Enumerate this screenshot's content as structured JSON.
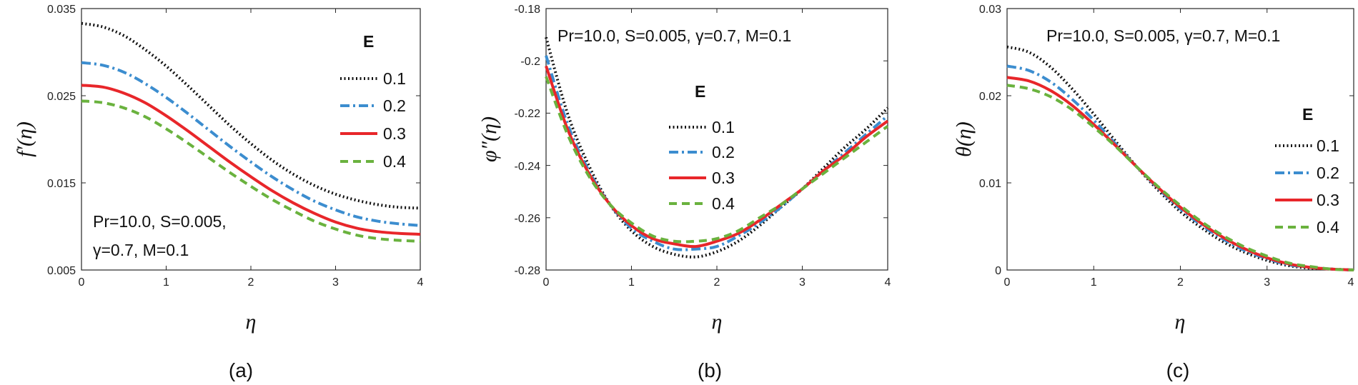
{
  "chart_data": [
    {
      "type": "line",
      "panel_label": "(a)",
      "xlabel": "η",
      "ylabel": "f′(η)",
      "xlim": [
        0,
        4
      ],
      "ylim": [
        0.005,
        0.035
      ],
      "xticks": [
        "0",
        "1",
        "2",
        "3",
        "4"
      ],
      "yticks": [
        "0.005",
        "0.015",
        "0.025",
        "0.035"
      ],
      "annotation": [
        "Pr=10.0, S=0.005,",
        "γ=0.7, M=0.1"
      ],
      "legend": {
        "title": "E",
        "placement": "top-right"
      },
      "series": [
        {
          "name": "0.1",
          "style": "dotted",
          "color": "#111111",
          "x": [
            0,
            0.25,
            0.5,
            0.75,
            1,
            1.25,
            1.5,
            1.75,
            2,
            2.25,
            2.5,
            2.75,
            3,
            3.25,
            3.5,
            3.75,
            4
          ],
          "y": [
            0.0333,
            0.0329,
            0.0319,
            0.0303,
            0.0284,
            0.0262,
            0.0239,
            0.0216,
            0.0195,
            0.0176,
            0.016,
            0.0147,
            0.0137,
            0.013,
            0.0125,
            0.0122,
            0.0121
          ]
        },
        {
          "name": "0.2",
          "style": "dashdot",
          "color": "#3c8dcf",
          "x": [
            0,
            0.25,
            0.5,
            0.75,
            1,
            1.25,
            1.5,
            1.75,
            2,
            2.25,
            2.5,
            2.75,
            3,
            3.25,
            3.5,
            3.75,
            4
          ],
          "y": [
            0.0288,
            0.0285,
            0.0277,
            0.0264,
            0.0248,
            0.023,
            0.0211,
            0.0192,
            0.0174,
            0.0157,
            0.0142,
            0.0129,
            0.0119,
            0.0111,
            0.0106,
            0.0103,
            0.0101
          ]
        },
        {
          "name": "0.3",
          "style": "solid",
          "color": "#e8262a",
          "x": [
            0,
            0.25,
            0.5,
            0.75,
            1,
            1.25,
            1.5,
            1.75,
            2,
            2.25,
            2.5,
            2.75,
            3,
            3.25,
            3.5,
            3.75,
            4
          ],
          "y": [
            0.0262,
            0.026,
            0.0253,
            0.0242,
            0.0227,
            0.021,
            0.0192,
            0.0174,
            0.0157,
            0.0141,
            0.0127,
            0.0115,
            0.0105,
            0.0098,
            0.0094,
            0.0092,
            0.0091
          ]
        },
        {
          "name": "0.4",
          "style": "dashed",
          "color": "#6ab23e",
          "x": [
            0,
            0.25,
            0.5,
            0.75,
            1,
            1.25,
            1.5,
            1.75,
            2,
            2.25,
            2.5,
            2.75,
            3,
            3.25,
            3.5,
            3.75,
            4
          ],
          "y": [
            0.0244,
            0.0242,
            0.0236,
            0.0226,
            0.0212,
            0.0196,
            0.0179,
            0.0162,
            0.0146,
            0.0131,
            0.0118,
            0.0106,
            0.0097,
            0.009,
            0.0086,
            0.0084,
            0.0083
          ]
        }
      ]
    },
    {
      "type": "line",
      "panel_label": "(b)",
      "xlabel": "η",
      "ylabel": "φ″(η)",
      "xlim": [
        0,
        4
      ],
      "ylim": [
        -0.28,
        -0.18
      ],
      "xticks": [
        "0",
        "1",
        "2",
        "3",
        "4"
      ],
      "yticks": [
        "-0.28",
        "-0.26",
        "-0.24",
        "-0.22",
        "-0.2",
        "-0.18"
      ],
      "annotation": [
        "Pr=10.0, S=0.005, γ=0.7, M=0.1"
      ],
      "legend": {
        "title": "E",
        "placement": "center"
      },
      "series": [
        {
          "name": "0.1",
          "style": "dotted",
          "color": "#111111",
          "x": [
            0,
            0.25,
            0.5,
            0.75,
            1,
            1.25,
            1.5,
            1.75,
            2,
            2.25,
            2.5,
            2.75,
            3,
            3.25,
            3.5,
            3.75,
            4
          ],
          "y": [
            -0.191,
            -0.22,
            -0.24,
            -0.255,
            -0.265,
            -0.271,
            -0.274,
            -0.275,
            -0.273,
            -0.269,
            -0.263,
            -0.256,
            -0.249,
            -0.241,
            -0.233,
            -0.226,
            -0.218
          ]
        },
        {
          "name": "0.2",
          "style": "dashdot",
          "color": "#3c8dcf",
          "x": [
            0,
            0.25,
            0.5,
            0.75,
            1,
            1.25,
            1.5,
            1.75,
            2,
            2.25,
            2.5,
            2.75,
            3,
            3.25,
            3.5,
            3.75,
            4
          ],
          "y": [
            -0.198,
            -0.224,
            -0.242,
            -0.255,
            -0.264,
            -0.269,
            -0.272,
            -0.272,
            -0.271,
            -0.267,
            -0.262,
            -0.256,
            -0.249,
            -0.242,
            -0.235,
            -0.228,
            -0.221
          ]
        },
        {
          "name": "0.3",
          "style": "solid",
          "color": "#e8262a",
          "x": [
            0,
            0.25,
            0.5,
            0.75,
            1,
            1.25,
            1.5,
            1.75,
            2,
            2.25,
            2.5,
            2.75,
            3,
            3.25,
            3.5,
            3.75,
            4
          ],
          "y": [
            -0.202,
            -0.226,
            -0.243,
            -0.255,
            -0.263,
            -0.268,
            -0.27,
            -0.271,
            -0.269,
            -0.266,
            -0.261,
            -0.255,
            -0.249,
            -0.242,
            -0.236,
            -0.229,
            -0.223
          ]
        },
        {
          "name": "0.4",
          "style": "dashed",
          "color": "#6ab23e",
          "x": [
            0,
            0.25,
            0.5,
            0.75,
            1,
            1.25,
            1.5,
            1.75,
            2,
            2.25,
            2.5,
            2.75,
            3,
            3.25,
            3.5,
            3.75,
            4
          ],
          "y": [
            -0.206,
            -0.228,
            -0.244,
            -0.255,
            -0.262,
            -0.267,
            -0.269,
            -0.269,
            -0.268,
            -0.265,
            -0.26,
            -0.255,
            -0.249,
            -0.243,
            -0.237,
            -0.231,
            -0.225
          ]
        }
      ]
    },
    {
      "type": "line",
      "panel_label": "(c)",
      "xlabel": "η",
      "ylabel": "θ(η)",
      "xlim": [
        0,
        4
      ],
      "ylim": [
        0,
        0.03
      ],
      "xticks": [
        "0",
        "1",
        "2",
        "3",
        "4"
      ],
      "yticks": [
        "0",
        "0.01",
        "0.02",
        "0.03"
      ],
      "annotation": [
        "Pr=10.0, S=0.005, γ=0.7, M=0.1"
      ],
      "legend": {
        "title": "E",
        "placement": "right"
      },
      "series": [
        {
          "name": "0.1",
          "style": "dotted",
          "color": "#111111",
          "x": [
            0,
            0.25,
            0.5,
            0.75,
            1,
            1.25,
            1.5,
            1.75,
            2,
            2.25,
            2.5,
            2.75,
            3,
            3.25,
            3.5,
            3.75,
            4
          ],
          "y": [
            0.0256,
            0.025,
            0.0233,
            0.0208,
            0.0179,
            0.0148,
            0.0118,
            0.0091,
            0.0067,
            0.0048,
            0.0032,
            0.002,
            0.0011,
            0.0005,
            0.0002,
            0.0001,
            0.0
          ]
        },
        {
          "name": "0.2",
          "style": "dashdot",
          "color": "#3c8dcf",
          "x": [
            0,
            0.25,
            0.5,
            0.75,
            1,
            1.25,
            1.5,
            1.75,
            2,
            2.25,
            2.5,
            2.75,
            3,
            3.25,
            3.5,
            3.75,
            4
          ],
          "y": [
            0.0234,
            0.0229,
            0.0216,
            0.0196,
            0.0172,
            0.0145,
            0.0118,
            0.0093,
            0.007,
            0.0051,
            0.0035,
            0.0022,
            0.0013,
            0.0006,
            0.0003,
            0.0001,
            0.0
          ]
        },
        {
          "name": "0.3",
          "style": "solid",
          "color": "#e8262a",
          "x": [
            0,
            0.25,
            0.5,
            0.75,
            1,
            1.25,
            1.5,
            1.75,
            2,
            2.25,
            2.5,
            2.75,
            3,
            3.25,
            3.5,
            3.75,
            4
          ],
          "y": [
            0.0221,
            0.0217,
            0.0206,
            0.0189,
            0.0167,
            0.0143,
            0.0118,
            0.0094,
            0.0072,
            0.0053,
            0.0037,
            0.0024,
            0.0014,
            0.0007,
            0.0003,
            0.0001,
            0.0
          ]
        },
        {
          "name": "0.4",
          "style": "dashed",
          "color": "#6ab23e",
          "x": [
            0,
            0.25,
            0.5,
            0.75,
            1,
            1.25,
            1.5,
            1.75,
            2,
            2.25,
            2.5,
            2.75,
            3,
            3.25,
            3.5,
            3.75,
            4
          ],
          "y": [
            0.0212,
            0.0208,
            0.0199,
            0.0184,
            0.0164,
            0.0142,
            0.0118,
            0.0095,
            0.0074,
            0.0055,
            0.0039,
            0.0026,
            0.0016,
            0.0008,
            0.0004,
            0.0001,
            0.0
          ]
        }
      ]
    }
  ]
}
